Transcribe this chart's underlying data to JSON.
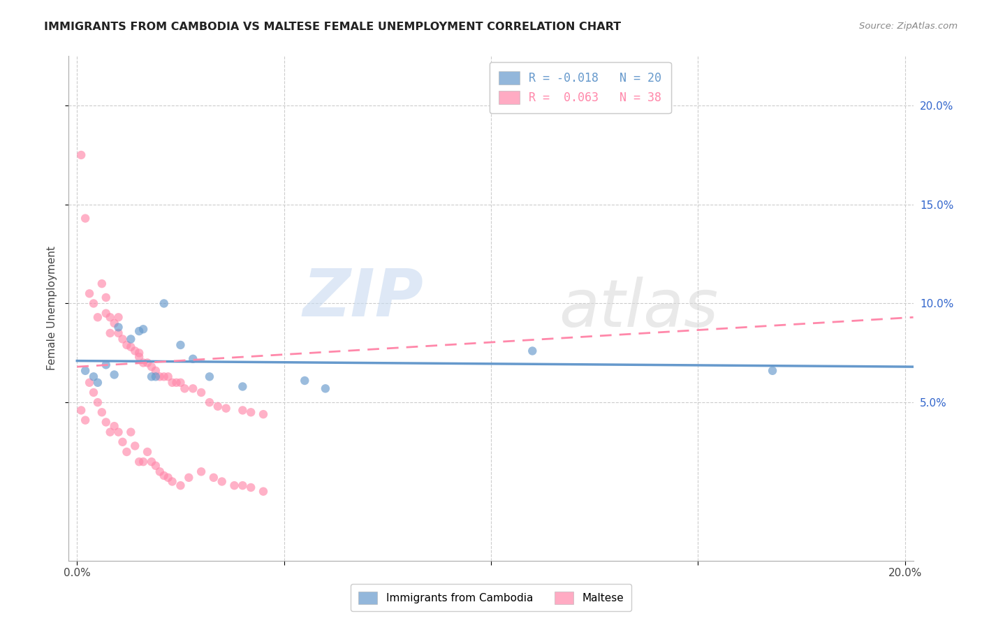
{
  "title": "IMMIGRANTS FROM CAMBODIA VS MALTESE FEMALE UNEMPLOYMENT CORRELATION CHART",
  "source": "Source: ZipAtlas.com",
  "ylabel": "Female Unemployment",
  "xlim": [
    -0.002,
    0.202
  ],
  "ylim": [
    -0.03,
    0.225
  ],
  "yticks": [
    0.05,
    0.1,
    0.15,
    0.2
  ],
  "ytick_labels": [
    "5.0%",
    "10.0%",
    "15.0%",
    "20.0%"
  ],
  "xticks": [
    0.0,
    0.05,
    0.1,
    0.15,
    0.2
  ],
  "xtick_labels": [
    "0.0%",
    "",
    "",
    "",
    "20.0%"
  ],
  "watermark_zip": "ZIP",
  "watermark_atlas": "atlas",
  "legend_blue_label": "Immigrants from Cambodia",
  "legend_pink_label": "Maltese",
  "blue_color": "#6699cc",
  "pink_color": "#ff88aa",
  "blue_scatter_x": [
    0.002,
    0.004,
    0.005,
    0.007,
    0.009,
    0.01,
    0.013,
    0.015,
    0.016,
    0.018,
    0.019,
    0.021,
    0.025,
    0.028,
    0.032,
    0.04,
    0.055,
    0.06,
    0.11,
    0.168
  ],
  "blue_scatter_y": [
    0.066,
    0.063,
    0.06,
    0.069,
    0.064,
    0.088,
    0.082,
    0.086,
    0.087,
    0.063,
    0.063,
    0.1,
    0.079,
    0.072,
    0.063,
    0.058,
    0.061,
    0.057,
    0.076,
    0.066
  ],
  "pink_scatter_x": [
    0.001,
    0.002,
    0.003,
    0.004,
    0.005,
    0.006,
    0.007,
    0.007,
    0.008,
    0.008,
    0.009,
    0.01,
    0.01,
    0.011,
    0.012,
    0.013,
    0.014,
    0.015,
    0.015,
    0.016,
    0.017,
    0.018,
    0.019,
    0.02,
    0.021,
    0.022,
    0.023,
    0.024,
    0.025,
    0.026,
    0.028,
    0.03,
    0.032,
    0.034,
    0.036,
    0.04,
    0.042,
    0.045
  ],
  "pink_scatter_y": [
    0.175,
    0.143,
    0.105,
    0.1,
    0.093,
    0.11,
    0.095,
    0.103,
    0.085,
    0.093,
    0.09,
    0.085,
    0.093,
    0.082,
    0.079,
    0.078,
    0.076,
    0.073,
    0.075,
    0.07,
    0.07,
    0.068,
    0.066,
    0.063,
    0.063,
    0.063,
    0.06,
    0.06,
    0.06,
    0.057,
    0.057,
    0.055,
    0.05,
    0.048,
    0.047,
    0.046,
    0.045,
    0.044
  ],
  "pink_scatter_low_x": [
    0.001,
    0.002,
    0.003,
    0.004,
    0.005,
    0.006,
    0.007,
    0.008,
    0.009,
    0.01,
    0.011,
    0.012,
    0.013,
    0.014,
    0.015,
    0.016,
    0.017,
    0.018,
    0.019,
    0.02,
    0.021,
    0.022,
    0.023,
    0.025,
    0.027,
    0.03,
    0.033,
    0.035,
    0.038,
    0.04,
    0.042,
    0.045
  ],
  "pink_scatter_low_y": [
    0.046,
    0.041,
    0.06,
    0.055,
    0.05,
    0.045,
    0.04,
    0.035,
    0.038,
    0.035,
    0.03,
    0.025,
    0.035,
    0.028,
    0.02,
    0.02,
    0.025,
    0.02,
    0.018,
    0.015,
    0.013,
    0.012,
    0.01,
    0.008,
    0.012,
    0.015,
    0.012,
    0.01,
    0.008,
    0.008,
    0.007,
    0.005
  ],
  "blue_line_x": [
    0.0,
    0.202
  ],
  "blue_line_y": [
    0.071,
    0.068
  ],
  "pink_line_x": [
    0.0,
    0.202
  ],
  "pink_line_y": [
    0.068,
    0.093
  ],
  "background_color": "#ffffff",
  "grid_color": "#cccccc",
  "right_tick_color": "#3366cc",
  "title_color": "#222222",
  "source_color": "#888888"
}
